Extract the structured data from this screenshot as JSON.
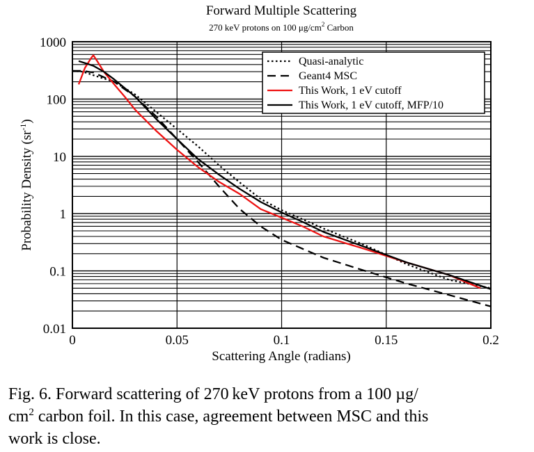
{
  "chart_data": {
    "type": "line",
    "title": "Forward Multiple Scattering",
    "subtitle": {
      "prefix": "270 keV protons on 100 ",
      "mu": "μ",
      "unit_g": "g/cm",
      "sup": "2",
      "suffix": " Carbon"
    },
    "xlabel": "Scattering Angle (radians)",
    "ylabel": {
      "main": "Probability Density (sr",
      "sup": "-1",
      "close": ")"
    },
    "xlim": [
      0,
      0.2
    ],
    "ylim": [
      0.01,
      1000
    ],
    "yscale": "log",
    "grid": true,
    "legend_position": "top-right",
    "x_ticks": [
      "0",
      "0.05",
      "0.1",
      "0.15",
      "0.2"
    ],
    "y_ticks": [
      "0.01",
      "0.1",
      "1",
      "10",
      "100",
      "1000"
    ],
    "series": [
      {
        "name": "Quasi-analytic",
        "style": "dotted",
        "color": "#000000",
        "x": [
          0.0,
          0.005,
          0.01,
          0.02,
          0.03,
          0.04,
          0.05,
          0.06,
          0.07,
          0.08,
          0.09,
          0.1,
          0.12,
          0.14,
          0.16,
          0.18,
          0.2
        ],
        "y": [
          310,
          300,
          260,
          200,
          120,
          60,
          30,
          15,
          7,
          3.5,
          1.8,
          1.15,
          0.55,
          0.28,
          0.13,
          0.07,
          0.05
        ]
      },
      {
        "name": "Geant4 MSC",
        "style": "dashed",
        "color": "#000000",
        "x": [
          0.0,
          0.005,
          0.01,
          0.02,
          0.03,
          0.04,
          0.05,
          0.06,
          0.07,
          0.08,
          0.09,
          0.1,
          0.12,
          0.14,
          0.16,
          0.18,
          0.2
        ],
        "y": [
          310,
          310,
          290,
          200,
          110,
          50,
          20,
          8,
          3,
          1.2,
          0.6,
          0.35,
          0.17,
          0.1,
          0.06,
          0.038,
          0.024
        ]
      },
      {
        "name": "This Work, 1 eV cutoff",
        "style": "solid",
        "color": "#ee1111",
        "x": [
          0.003,
          0.006,
          0.009,
          0.01,
          0.012,
          0.015,
          0.02,
          0.025,
          0.03,
          0.04,
          0.05,
          0.06,
          0.07,
          0.08,
          0.09,
          0.1,
          0.11,
          0.12,
          0.14,
          0.16,
          0.18,
          0.195
        ],
        "y": [
          180,
          350,
          520,
          580,
          450,
          300,
          180,
          110,
          65,
          28,
          13,
          6.5,
          3.6,
          2.2,
          1.2,
          0.85,
          0.6,
          0.4,
          0.24,
          0.14,
          0.085,
          0.05
        ]
      },
      {
        "name": "This Work, 1 eV cutoff, MFP/10",
        "style": "solid",
        "color": "#000000",
        "x": [
          0.003,
          0.01,
          0.015,
          0.02,
          0.03,
          0.04,
          0.05,
          0.06,
          0.07,
          0.08,
          0.09,
          0.1,
          0.11,
          0.12,
          0.14,
          0.16,
          0.18,
          0.2
        ],
        "y": [
          460,
          380,
          300,
          220,
          110,
          45,
          20,
          9,
          4.8,
          2.7,
          1.6,
          1.05,
          0.72,
          0.48,
          0.26,
          0.14,
          0.085,
          0.048
        ]
      }
    ]
  },
  "caption": {
    "line1": "Fig. 6.  Forward scattering of 270 keV protons from a 100 µg/",
    "line2_a": "cm",
    "line2_sup": "2",
    "line2_b": " carbon foil. In this case, agreement between MSC and this",
    "line3": "work is close."
  }
}
